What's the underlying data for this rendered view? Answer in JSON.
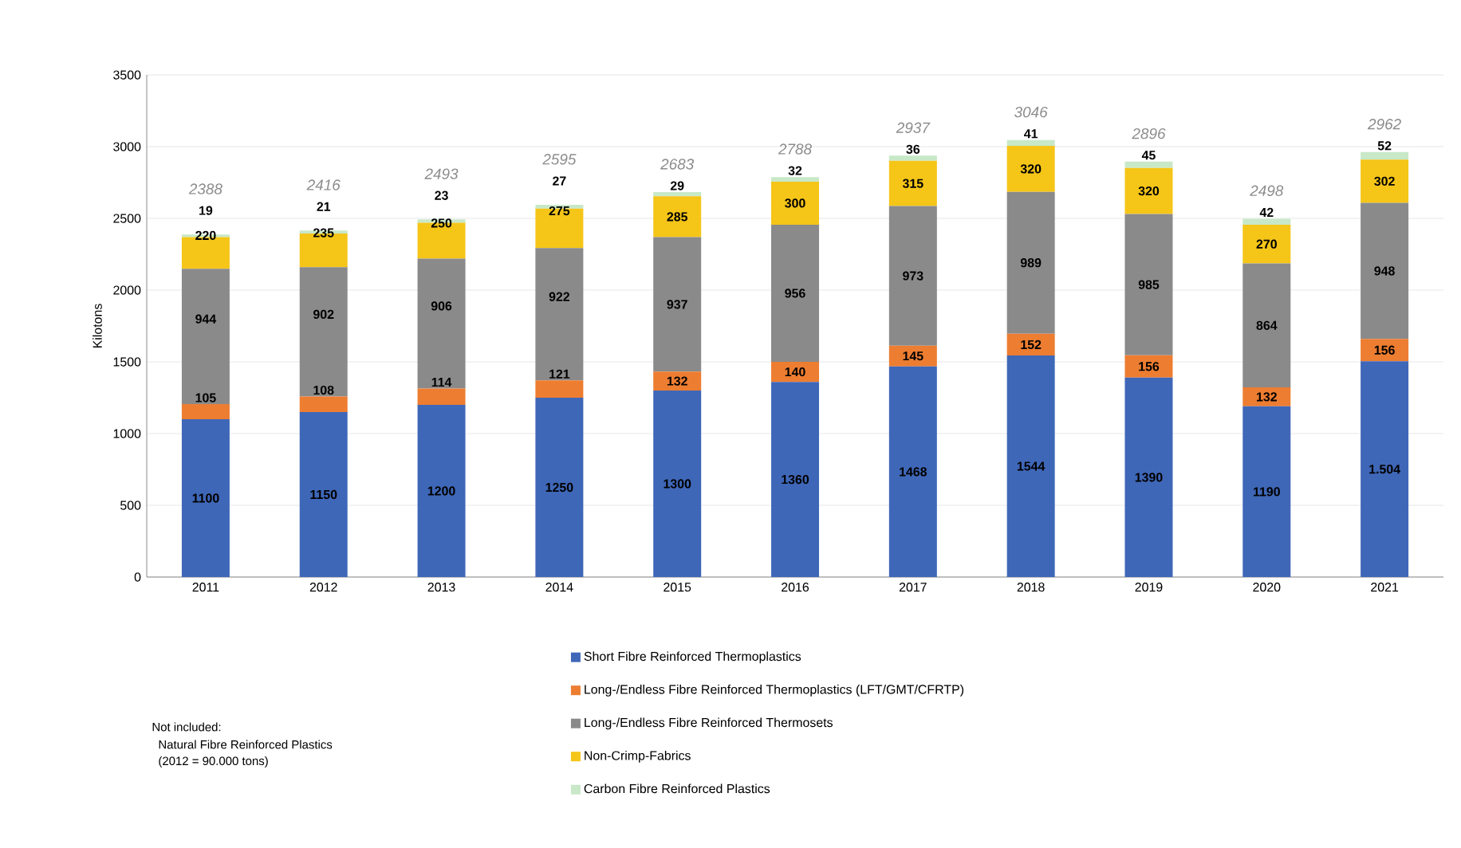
{
  "chart_data": {
    "type": "bar",
    "stacked": true,
    "ylabel": "Kilotons",
    "categories": [
      "2011",
      "2012",
      "2013",
      "2014",
      "2015",
      "2016",
      "2017",
      "2018",
      "2019",
      "2020",
      "2021"
    ],
    "series": [
      {
        "name": "Short Fibre Reinforced Thermoplastics",
        "color": "#3f67b8",
        "values": [
          1100,
          1150,
          1200,
          1250,
          1300,
          1360,
          1468,
          1544,
          1390,
          1190,
          1504
        ],
        "value_labels": [
          "1100",
          "1150",
          "1200",
          "1250",
          "1300",
          "1360",
          "1468",
          "1544",
          "1390",
          "1190",
          "1.504"
        ]
      },
      {
        "name": "Long-/Endless Fibre Reinforced Thermoplastics (LFT/GMT/CFRTP)",
        "color": "#ed7d31",
        "values": [
          105,
          108,
          114,
          121,
          132,
          140,
          145,
          152,
          156,
          132,
          156
        ],
        "value_labels": [
          "105",
          "108",
          "114",
          "121",
          "132",
          "140",
          "145",
          "152",
          "156",
          "132",
          "156"
        ]
      },
      {
        "name": "Long-/Endless Fibre Reinforced Thermosets",
        "color": "#8a8a8a",
        "values": [
          944,
          902,
          906,
          922,
          937,
          956,
          973,
          989,
          985,
          864,
          948
        ],
        "value_labels": [
          "944",
          "902",
          "906",
          "922",
          "937",
          "956",
          "973",
          "989",
          "985",
          "864",
          "948"
        ]
      },
      {
        "name": "Non-Crimp-Fabrics",
        "color": "#f5c518",
        "values": [
          220,
          235,
          250,
          275,
          285,
          300,
          315,
          320,
          320,
          270,
          302
        ],
        "value_labels": [
          "220",
          "235",
          "250",
          "275",
          "285",
          "300",
          "315",
          "320",
          "320",
          "270",
          "302"
        ]
      },
      {
        "name": "Carbon Fibre Reinforced Plastics",
        "color": "#c8e8c8",
        "values": [
          19,
          21,
          23,
          27,
          29,
          32,
          36,
          41,
          45,
          42,
          52
        ],
        "value_labels": [
          "19",
          "21",
          "23",
          "27",
          "29",
          "32",
          "36",
          "41",
          "45",
          "42",
          "52"
        ]
      }
    ],
    "totals": [
      "2388",
      "2416",
      "2493",
      "2595",
      "2683",
      "2788",
      "2937",
      "3046",
      "2896",
      "2498",
      "2962"
    ],
    "ylim": [
      0,
      3500
    ],
    "yticks": [
      0,
      500,
      1000,
      1500,
      2000,
      2500,
      3000,
      3500
    ],
    "grid": "y",
    "legend": "bottom",
    "annotations": [
      "Not included:",
      "Natural Fibre Reinforced Plastics",
      "(2012 = 90.000 tons)"
    ]
  }
}
